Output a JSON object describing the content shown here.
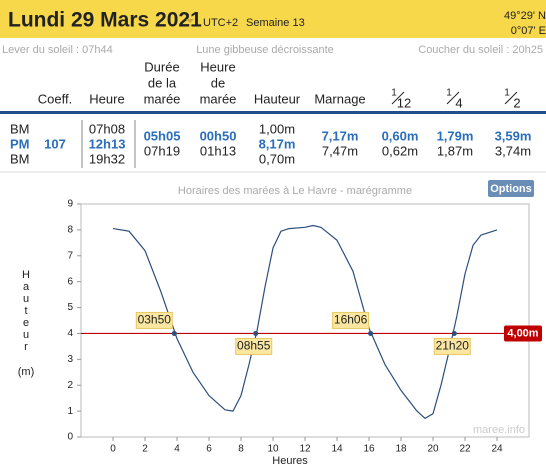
{
  "header": {
    "title": "Lundi 29 Mars 2021",
    "timezone": "UTC+2",
    "week": "Semaine 13",
    "lat": "49°29' N",
    "lon": "0°07' E"
  },
  "sun": {
    "rise": "Lever du soleil : 07h44",
    "moon": "Lune gibbeuse décroissante",
    "set": "Coucher du soleil : 20h25"
  },
  "table": {
    "headers": {
      "coeff": "Coeff.",
      "heure": "Heure",
      "duree": [
        "Durée",
        "de la",
        "marée"
      ],
      "heure_maree": [
        "Heure",
        "de",
        "marée"
      ],
      "hauteur": "Hauteur",
      "marnage": "Marnage",
      "f12": {
        "num": "1",
        "den": "12"
      },
      "f4": {
        "num": "1",
        "den": "4"
      },
      "f2": {
        "num": "1",
        "den": "2"
      }
    },
    "tide": [
      "BM",
      "PM",
      "BM"
    ],
    "coeff": "107",
    "heure": [
      "07h08",
      "12h13",
      "19h32"
    ],
    "duree": [
      "05h05",
      "07h19"
    ],
    "heure_maree": [
      "00h50",
      "01h13"
    ],
    "hauteur": [
      "1,00m",
      "8,17m",
      "0,70m"
    ],
    "marnage": [
      "7,17m",
      "7,47m"
    ],
    "f12": [
      "0,60m",
      "0,62m"
    ],
    "f4": [
      "1,79m",
      "1,87m"
    ],
    "f2": [
      "3,59m",
      "3,74m"
    ]
  },
  "options": "Options",
  "chart_data": {
    "type": "line",
    "title": "Horaires des marées à Le Havre - marégramme",
    "x_label": "Heures",
    "y_label": "Hauteur",
    "y_unit": "(m)",
    "watermark": "maree.info",
    "x": [
      0,
      1,
      2,
      3,
      4,
      5,
      6,
      7,
      7.5,
      8,
      8.5,
      9,
      9.5,
      10,
      10.5,
      11,
      12,
      12.5,
      13,
      14,
      15,
      16,
      17,
      18,
      19,
      19.5,
      20,
      20.5,
      21,
      21.5,
      22,
      22.5,
      23,
      24
    ],
    "series": [
      {
        "name": "Hauteur",
        "color": "#2c4f7c",
        "values": [
          8.05,
          7.95,
          7.2,
          5.6,
          3.8,
          2.5,
          1.6,
          1.05,
          1.0,
          1.6,
          2.8,
          4.1,
          5.8,
          7.3,
          7.95,
          8.05,
          8.1,
          8.17,
          8.1,
          7.6,
          6.4,
          4.2,
          2.8,
          1.8,
          1.0,
          0.72,
          0.9,
          2.0,
          3.3,
          4.7,
          6.3,
          7.4,
          7.8,
          8.0
        ]
      }
    ],
    "xlim": [
      -2,
      26
    ],
    "ylim": [
      0,
      9
    ],
    "xticks": [
      0,
      2,
      4,
      6,
      8,
      10,
      12,
      14,
      16,
      18,
      20,
      22,
      24
    ],
    "yticks": [
      0,
      1,
      2,
      3,
      4,
      5,
      6,
      7,
      8,
      9
    ],
    "hline": {
      "value": 4,
      "label": "4,00m",
      "color": "#c00000"
    },
    "annotations": [
      {
        "x": 3.83,
        "y": 4,
        "label": "03h50"
      },
      {
        "x": 8.92,
        "y": 4,
        "label": "08h55"
      },
      {
        "x": 16.1,
        "y": 4,
        "label": "16h06"
      },
      {
        "x": 21.33,
        "y": 4,
        "label": "21h20"
      }
    ]
  }
}
